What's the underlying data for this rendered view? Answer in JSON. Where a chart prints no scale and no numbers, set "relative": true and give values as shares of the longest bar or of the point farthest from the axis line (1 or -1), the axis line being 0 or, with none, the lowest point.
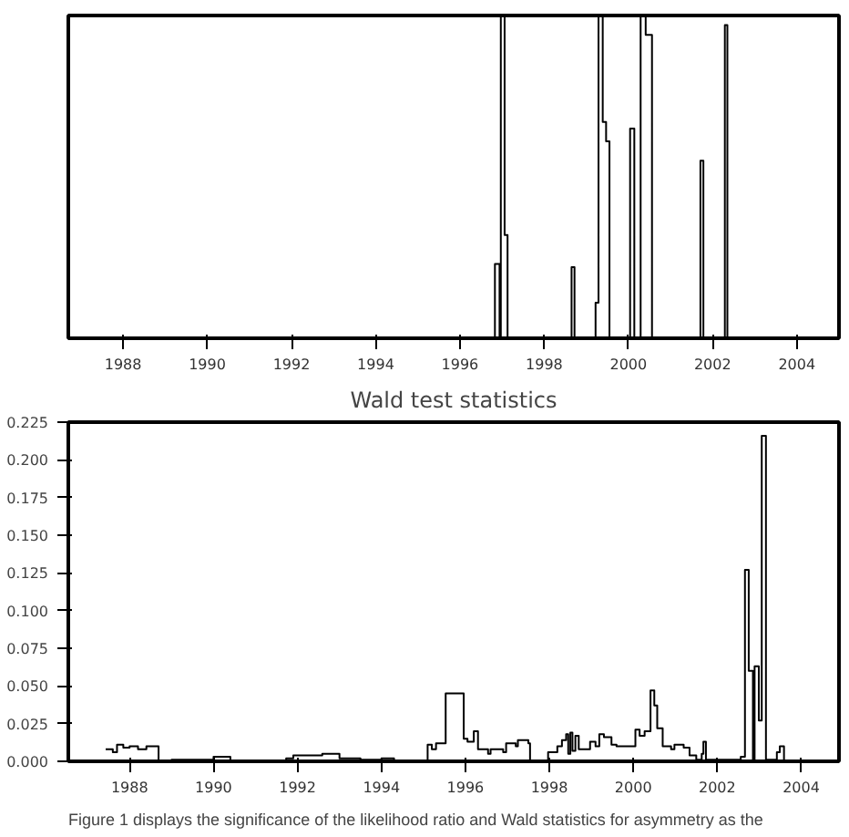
{
  "chart_data": [
    {
      "type": "step",
      "relative": true,
      "tick_labels": "x",
      "x": [
        1986.7,
        1996.83,
        1996.94,
        1996.97,
        1997.06,
        1997.13,
        1998.65,
        1998.72,
        1999.22,
        1999.29,
        1999.39,
        1999.47,
        1999.55,
        2000.04,
        2000.14,
        2000.29,
        2000.41,
        2000.56,
        2001.71,
        2001.78,
        2002.29,
        2002.35,
        2005.0
      ],
      "values": [
        0,
        0.23,
        0,
        1,
        0.32,
        0,
        0.22,
        0,
        0.11,
        1,
        0.67,
        0.61,
        0,
        0.65,
        0,
        1,
        0.94,
        0,
        0.55,
        0,
        0.97,
        0,
        0
      ],
      "color": "#000000",
      "xlim": [
        1986.7,
        2005.0
      ],
      "xticks": [
        1988,
        1990,
        1992,
        1994,
        1996,
        1998,
        2000,
        2002,
        2004
      ]
    },
    {
      "type": "step",
      "title": "Wald test statistics",
      "annotations": [
        "Figure 1 displays the significance of the likelihood ratio and Wald statistics for asymmetry as the"
      ],
      "x": [
        1987.43,
        1987.6,
        1987.7,
        1987.85,
        1988.0,
        1988.2,
        1988.4,
        1988.69,
        1989.0,
        1990.0,
        1990.4,
        1991.73,
        1991.9,
        1992.59,
        1993.0,
        1993.1,
        1993.5,
        1994.0,
        1994.3,
        1995.1,
        1995.2,
        1995.3,
        1995.53,
        1995.96,
        1996.05,
        1996.2,
        1996.3,
        1996.54,
        1996.6,
        1996.9,
        1996.97,
        1997.2,
        1997.25,
        1997.5,
        1997.54,
        1997.97,
        1998.19,
        1998.3,
        1998.4,
        1998.45,
        1998.5,
        1998.55,
        1998.62,
        1998.7,
        1998.97,
        1999.1,
        1999.19,
        1999.3,
        1999.48,
        1999.6,
        2000.05,
        2000.15,
        2000.27,
        2000.41,
        2000.5,
        2000.57,
        2000.7,
        2000.9,
        2000.98,
        2001.2,
        2001.34,
        2001.5,
        2001.63,
        2001.67,
        2001.73,
        2002.56,
        2002.66,
        2002.75,
        2002.85,
        2002.89,
        2002.99,
        2003.06,
        2003.16,
        2003.42,
        2003.49,
        2003.59,
        2004.07
      ],
      "values": [
        0.008,
        0.006,
        0.011,
        0.009,
        0.01,
        0.008,
        0.01,
        0.0,
        0.001,
        0.003,
        0.0,
        0.002,
        0.004,
        0.005,
        0.002,
        0.002,
        0.001,
        0.002,
        0.0,
        0.011,
        0.008,
        0.012,
        0.045,
        0.015,
        0.013,
        0.02,
        0.008,
        0.005,
        0.008,
        0.006,
        0.012,
        0.01,
        0.014,
        0.012,
        0.0,
        0.006,
        0.01,
        0.014,
        0.018,
        0.005,
        0.019,
        0.007,
        0.017,
        0.008,
        0.013,
        0.01,
        0.018,
        0.016,
        0.011,
        0.01,
        0.021,
        0.017,
        0.02,
        0.047,
        0.037,
        0.022,
        0.01,
        0.008,
        0.011,
        0.009,
        0.004,
        0.001,
        0.005,
        0.013,
        0.001,
        0.003,
        0.127,
        0.06,
        0.0,
        0.063,
        0.027,
        0.216,
        0.001,
        0.006,
        0.01,
        0.0,
        0.0
      ],
      "color": "#000000",
      "xlim": [
        1986.54,
        2004.9
      ],
      "ylim": [
        0,
        0.225
      ],
      "xticks": [
        1988,
        1990,
        1992,
        1994,
        1996,
        1998,
        2000,
        2002,
        2004
      ],
      "yticks": [
        {
          "value": 0,
          "label": "0.000"
        },
        {
          "value": 0.025,
          "label": "0.025"
        },
        {
          "value": 0.05,
          "label": "0.050"
        },
        {
          "value": 0.075,
          "label": "0.075"
        },
        {
          "value": 0.1,
          "label": "0.100"
        },
        {
          "value": 0.125,
          "label": "0.125"
        },
        {
          "value": 0.15,
          "label": "0.150"
        },
        {
          "value": 0.175,
          "label": "0.175"
        },
        {
          "value": 0.2,
          "label": "0.200"
        },
        {
          "value": 0.225,
          "label": "0.225"
        }
      ]
    }
  ]
}
